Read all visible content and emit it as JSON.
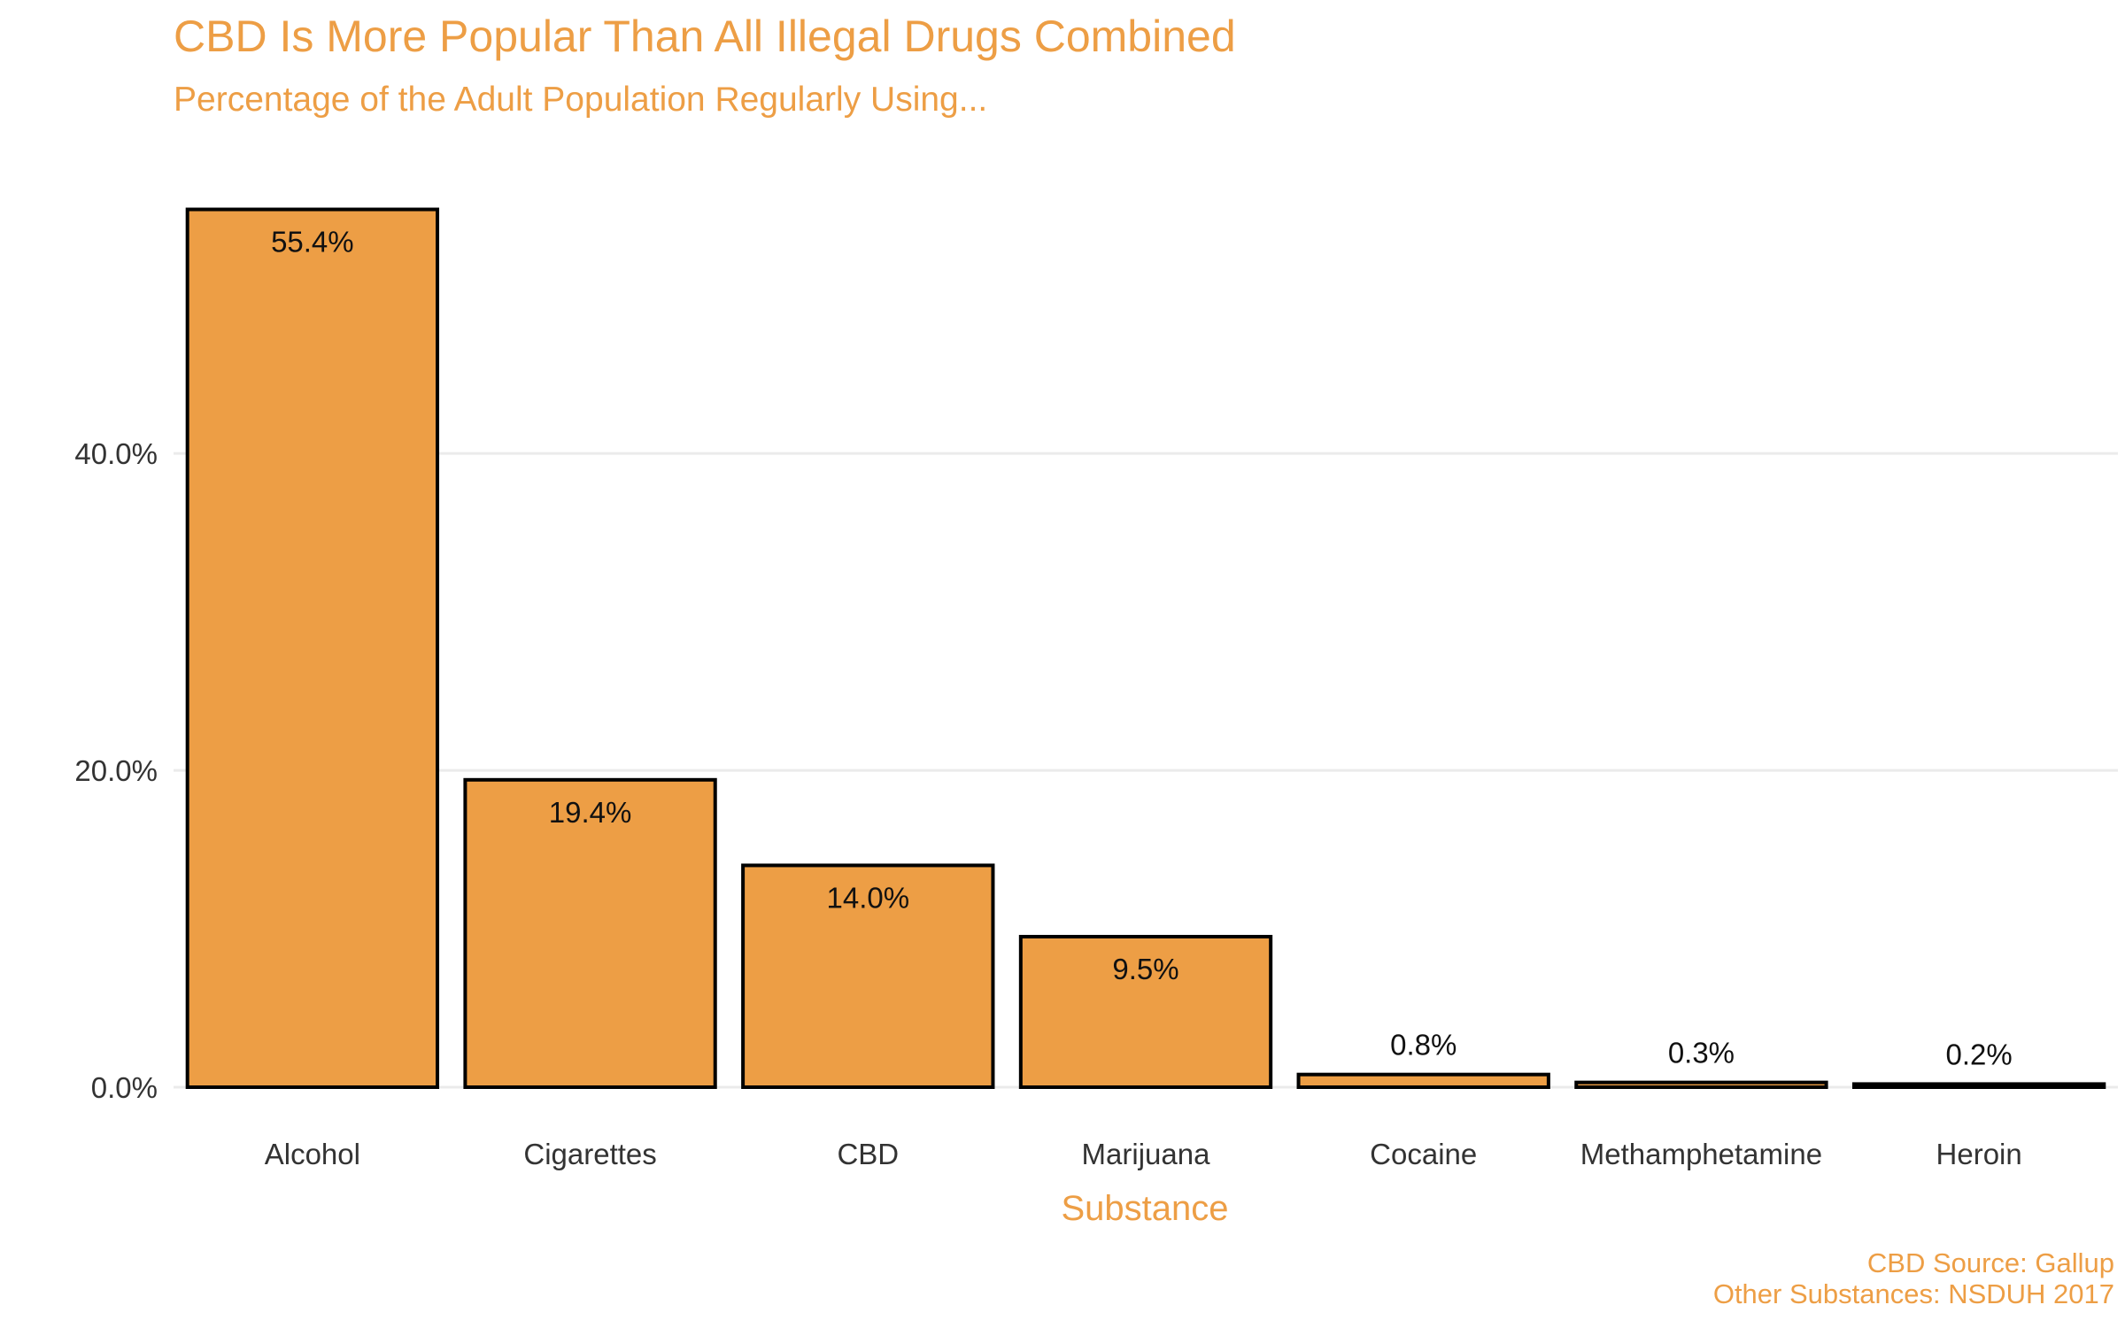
{
  "chart_data": {
    "type": "bar",
    "title": "CBD Is More Popular Than All Illegal Drugs Combined",
    "subtitle": "Percentage of the Adult Population Regularly Using...",
    "xlabel": "Substance",
    "ylabel": "",
    "categories": [
      "Alcohol",
      "Cigarettes",
      "CBD",
      "Marijuana",
      "Cocaine",
      "Methamphetamine",
      "Heroin"
    ],
    "values": [
      55.4,
      19.4,
      14.0,
      9.5,
      0.8,
      0.3,
      0.2
    ],
    "value_labels": [
      "55.4%",
      "19.4%",
      "14.0%",
      "9.5%",
      "0.8%",
      "0.3%",
      "0.2%"
    ],
    "yticks": [
      0,
      20,
      40
    ],
    "ytick_labels": [
      "0.0%",
      "20.0%",
      "40.0%"
    ],
    "ylim": [
      0,
      58
    ],
    "grid": true,
    "legend": "none",
    "caption": [
      "CBD Source: Gallup",
      "Other Substances: NSDUH 2017"
    ]
  },
  "colors": {
    "bar_fill": "#ed9e45",
    "bar_stroke": "#000000",
    "accent_text": "#ed9e45",
    "grid": "#ebebeb",
    "tick_text": "#333333"
  }
}
